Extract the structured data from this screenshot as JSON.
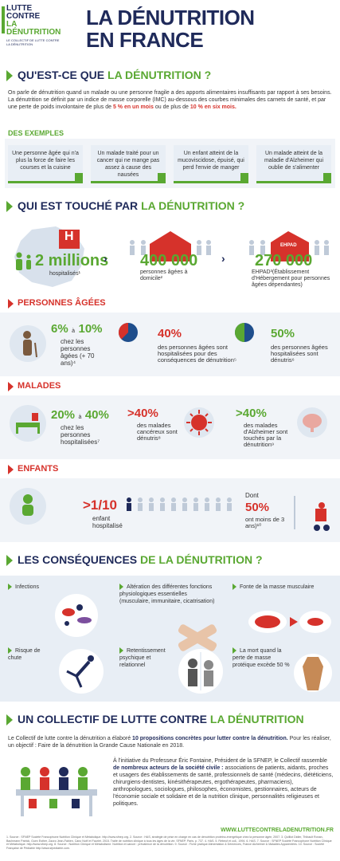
{
  "logo": {
    "line1": "LUTTE",
    "line2": "CONTRE",
    "line3": "LA",
    "line4": "DÉNUTRITION",
    "tagline": "LE COLLECTIF DE LUTTE CONTRE LA DÉNUTRITION"
  },
  "header": {
    "title_line1": "LA DÉNUTRITION",
    "title_line2": "EN FRANCE"
  },
  "s1": {
    "title_a": "QU'EST-CE QUE ",
    "title_b": "LA DÉNUTRITION ?",
    "para_a": "On parle de dénutrition quand un malade ou une personne fragile a des apports alimentaires insuffisants par rapport à ses besoins. La dénutrition se définit par un indice de masse corporelle (IMC) au-dessous des courbes minimales des carnets de santé, et par une perte de poids involontaire de plus de ",
    "para_b": "5 % en un mois",
    "para_c": " ou de plus de ",
    "para_d": "10 % en six mois.",
    "examples_title": "DES EXEMPLES",
    "examples": [
      "Une personne âgée qui n'a plus la force de faire les courses et la cuisine",
      "Un malade traité pour un cancer qui ne mange pas assez à cause des nausées",
      "Un enfant atteint de la mucoviscidose, épuisé, qui perd l'envie de manger",
      "Un malade atteint de la maladie d'Alzheimer qui oublie de s'alimenter"
    ]
  },
  "s2": {
    "title_a": "QUI EST TOUCHÉ PAR ",
    "title_b": "LA DÉNUTRITION ?",
    "stat1_num": "2 millions",
    "stat1_label": "hospitalisés¹",
    "stat2_num": "400 000",
    "stat2_label": "personnes âgées à domicile²",
    "stat3_num": "270 000",
    "stat3_label": "EHPAD³(Établissement d'Hébergement pour personnes âgées dépendantes)",
    "ehpad": "EHPAD",
    "h": "H"
  },
  "elderly": {
    "title": "PERSONNES ÂGÉES",
    "range_a": "6%",
    "range_sep": "à",
    "range_b": "10%",
    "range_label": "chez les personnes âgées (+ 70 ans)⁴",
    "p1": "40%",
    "p1_label": "des personnes âgées sont hospitalisées pour des conséquences de dénutrition⁵",
    "p2": "50%",
    "p2_label": "des personnes âgées hospitalisées sont dénutris⁶"
  },
  "sick": {
    "title": "MALADES",
    "range_a": "20%",
    "range_sep": "à",
    "range_b": "40%",
    "range_label": "chez les personnes hospitalisées⁷",
    "p1": ">40%",
    "p1_label": "des malades cancéreux sont dénutris⁸",
    "p2": ">40%",
    "p2_label": "des malades d'Alzheimer sont touchés par la dénutrition⁹"
  },
  "children": {
    "title": "ENFANTS",
    "ratio": ">1/10",
    "ratio_label": "enfant hospitalisé",
    "dont": "Dont",
    "p1": "50%",
    "p1_label": "ont moins de 3 ans)¹⁰"
  },
  "s3": {
    "title_a": "LES CONSÉQUENCES ",
    "title_b": "DE LA DÉNUTRITION ?",
    "items": [
      "Infections",
      "Altération des différentes fonctions physiologiques essentielles (musculaire, immunitaire, cicatrisation)",
      "Fonte de la masse musculaire",
      "Risque de chute",
      "Retentissement psychique et relationnel",
      "La mort quand la perte de masse protéique excède 50 %"
    ]
  },
  "s4": {
    "title_a": "UN COLLECTIF DE LUTTE CONTRE ",
    "title_b": "LA DÉNUTRITION",
    "para1_a": "Le Collectif de lutte contre la dénutrition a élaboré ",
    "para1_b": "10 propositions concrètes pour lutter contre la dénutrition.",
    "para1_c": " Pour les réaliser, un objectif : Faire de la dénutrition la Grande Cause Nationale en 2018.",
    "para2_a": "À l'initiative du Professeur Éric Fontaine, Président de la SFNEP, le Collectif rassemble ",
    "para2_b": "de nombreux acteurs de la société civile :",
    "para2_c": " associations de patients, aidants, proches et usagers des établissements de santé, professionnels de santé (médecins, diététiciens, chirurgiens-dentistes, kinésithérapeutes, ergothérapeutes, pharmaciens), anthropologues, sociologues, philosophes, économistes, gestionnaires, acteurs de l'économie sociale et solidaire et de la nutrition clinique, personnalités religieuses et politiques."
  },
  "footer": {
    "url": "WWW.LUTTECONTRELADENUTRITION.FR",
    "notes": "1. Source : SFNEP Société Francophone Nutrition Clinique et Métabolique. http://www.sfnep.org. 2. Source : HAS, stratégie de prise en charge en cas de dénutrition protéino-énergétique chez la personne âgée, 2007. 3. Quilliot Didier, Thibault Ronan, Bachmann Patrick, Guex Esther, Zazzo Jean-Fabien, Cano Noël et Fauriet. 2015. Traité de nutrition clinique à tous les âges de la vie. SFNEP, Paris. p. 737. 4. HAS. 5. Rébeuf et coll., 1994. 6. HAS. 7. Source : SFNEP Société Francophone Nutrition Clinique et Métabolique. http://www.sfnep.org. 8. Source : Nutrition Clinique et Métabolisme. Nutrition et cancer : prévalence de la dénutrition. 9. Source : Fiche pratique Alimentation & Démences, France Alzheimer & Maladies Apparentées. 10. Source : Société Française de Pédiatrie http://www.sfpediatrie.com."
  },
  "colors": {
    "navy": "#1f2a5a",
    "green": "#5aa832",
    "red": "#d6322b",
    "band": "#f1f4f8"
  }
}
